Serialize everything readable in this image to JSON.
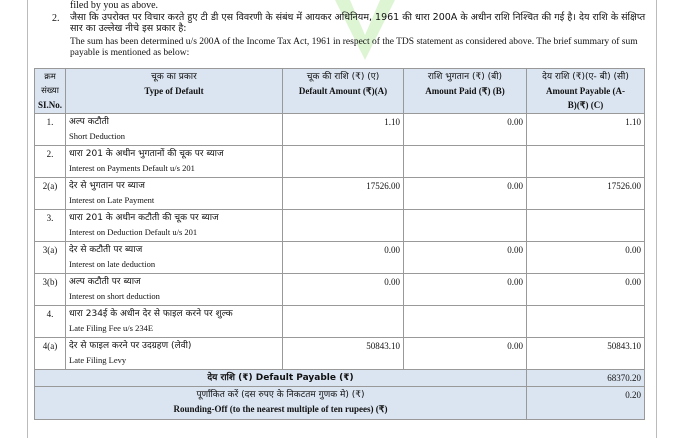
{
  "intro_tail": "filed by you as above.",
  "para_num": "2.",
  "para_hi": "जैसा कि उपरोक्त पर विचार करते हुए टी डी एस विवरणी के संबंध में आयकर अधिनियम, 1961 की धारा 200A के अधीन राशि निश्चित की गई है। देय राशि के संक्षिप्त सार का उल्लेख नीचे इस प्रकार है:",
  "para_en": "The sum has been determined u/s 200A of the Income Tax Act, 1961 in respect of the TDS statement as considered above. The brief summary of sum payable is mentioned as below:",
  "headers": [
    {
      "hi": "क्रम संख्या",
      "en": "SI.No."
    },
    {
      "hi": "चूक का प्रकार",
      "en": "Type of Default"
    },
    {
      "hi": "चूक की राशि (₹) (ए)",
      "en": "Default Amount (₹)(A)"
    },
    {
      "hi": "राशि भुगतान (₹) (बी)",
      "en": "Amount Paid (₹) (B)"
    },
    {
      "hi": "देय राशि (₹)(ए- बी) (सी)",
      "en": "Amount Payable (A-B)(₹) (C)"
    }
  ],
  "rows": [
    {
      "sl": "1.",
      "hi": "अल्प कटौती",
      "en": "Short Deduction",
      "a": "1.10",
      "b": "0.00",
      "c": "1.10"
    },
    {
      "sl": "2.",
      "hi": "धारा 201 के अधीन भुगतानों की चूक पर ब्याज",
      "en": "Interest on Payments Default u/s 201",
      "a": "",
      "b": "",
      "c": ""
    },
    {
      "sl": "2(a)",
      "hi": "देर से भुगतान पर ब्याज",
      "en": "Interest on Late Payment",
      "a": "17526.00",
      "b": "0.00",
      "c": "17526.00"
    },
    {
      "sl": "3.",
      "hi": "धारा 201 के अधीन कटौती की चूक पर ब्याज",
      "en": "Interest on Deduction Default u/s 201",
      "a": "",
      "b": "",
      "c": ""
    },
    {
      "sl": "3(a)",
      "hi": "देर से कटौती पर ब्याज",
      "en": "Interest on late deduction",
      "a": "0.00",
      "b": "0.00",
      "c": "0.00"
    },
    {
      "sl": "3(b)",
      "hi": "अल्प कटौती पर ब्याज",
      "en": "Interest on short deduction",
      "a": "0.00",
      "b": "0.00",
      "c": "0.00"
    },
    {
      "sl": "4.",
      "hi": "धारा 234ई के अधीन देर से फाइल करने पर शुल्क",
      "en": "Late Filing Fee u/s 234E",
      "a": "",
      "b": "",
      "c": ""
    },
    {
      "sl": "4(a)",
      "hi": "देर से फाइल करने पर उदग्रहण (लेवी)",
      "en": "Late Filing Levy",
      "a": "50843.10",
      "b": "0.00",
      "c": "50843.10"
    }
  ],
  "total": {
    "label": "देय राशि (₹) Default Payable (₹)",
    "value": "68370.20"
  },
  "rounding": {
    "hi": "पूर्णांकित करें (दस रुपए के निकटतम गुणक मे) (₹)",
    "en": "Rounding-Off (to the nearest multiple of ten rupees) (₹)",
    "value": "0.20"
  },
  "colors": {
    "header_bg": "#dbe5f1",
    "watermark": "#7ed957"
  }
}
